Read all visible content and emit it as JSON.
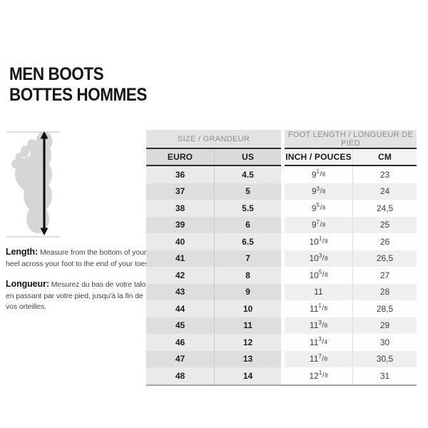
{
  "title": {
    "line1": "MEN BOOTS",
    "line2": "BOTTES HOMMES"
  },
  "instructions": {
    "length_label": "Length:",
    "length_text": "Measure from the bottom of your heel across your foot to the end of your toes.",
    "longueur_label": "Longueur:",
    "longueur_text": "Mesurez du bas de votre talon, en passant par votre pied, jusqu'à la fin de vos orteilles."
  },
  "table": {
    "group_headers": [
      "SIZE / GRANDEUR",
      "FOOT LENGTH / LONGUEUR DE PIED"
    ],
    "columns": [
      "EURO",
      "US",
      "INCH / POUCES",
      "CM"
    ],
    "rows": [
      {
        "euro": "36",
        "us": "4.5",
        "inch": "9 1/8",
        "cm": "23"
      },
      {
        "euro": "37",
        "us": "5",
        "inch": "9 3/8",
        "cm": "24"
      },
      {
        "euro": "38",
        "us": "5.5",
        "inch": "9 5/8",
        "cm": "24,5"
      },
      {
        "euro": "39",
        "us": "6",
        "inch": "9 7/8",
        "cm": "25"
      },
      {
        "euro": "40",
        "us": "6.5",
        "inch": "10 1/8",
        "cm": "26"
      },
      {
        "euro": "41",
        "us": "7",
        "inch": "10 3/8",
        "cm": "26,5"
      },
      {
        "euro": "42",
        "us": "8",
        "inch": "10 5/8",
        "cm": "27"
      },
      {
        "euro": "43",
        "us": "9",
        "inch": "11",
        "cm": "28"
      },
      {
        "euro": "44",
        "us": "10",
        "inch": "11 1/8",
        "cm": "28,5"
      },
      {
        "euro": "45",
        "us": "11",
        "inch": "11 3/8",
        "cm": "29"
      },
      {
        "euro": "46",
        "us": "12",
        "inch": "11 3/4",
        "cm": "30"
      },
      {
        "euro": "47",
        "us": "13",
        "inch": "11 7/8",
        "cm": "30,5"
      },
      {
        "euro": "48",
        "us": "14",
        "inch": "12 1/8",
        "cm": "31"
      }
    ]
  }
}
